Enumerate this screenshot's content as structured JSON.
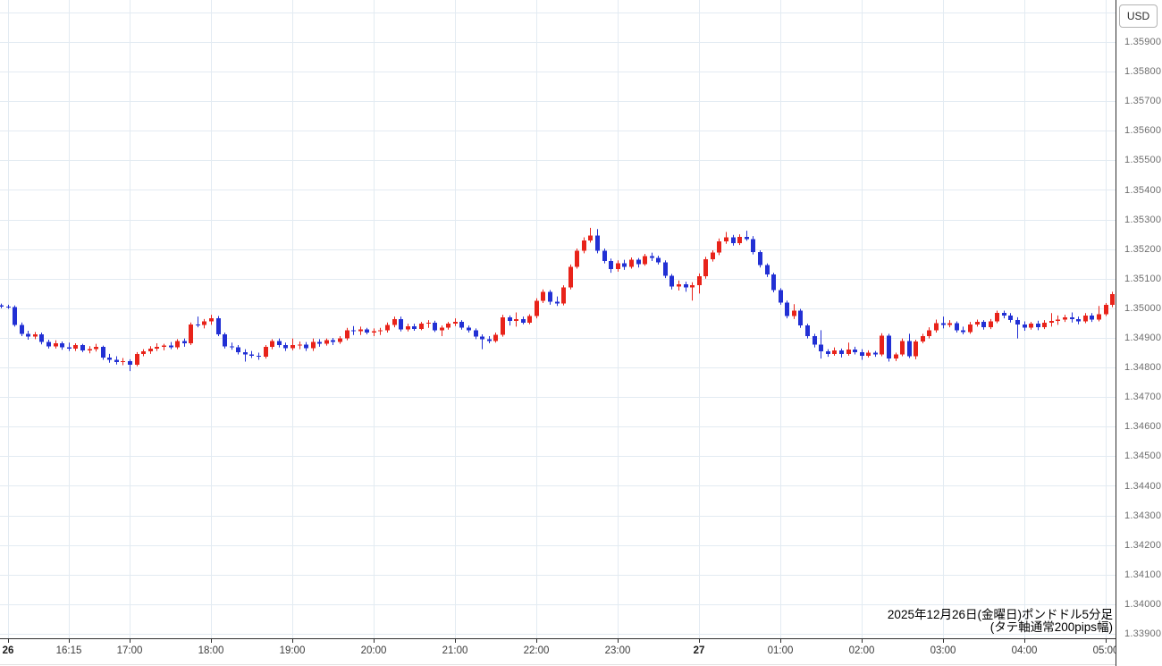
{
  "axis_panel": {
    "currency_label": "USD"
  },
  "caption": {
    "line1": "2025年12月26日(金曜日)ポンドドル5分足",
    "line2": "(タテ軸通常200pips幅)"
  },
  "chart_data": {
    "type": "candlestick",
    "instrument": "ポンドドル",
    "timeframe": "5分足",
    "date": "2025年12月26日(金曜日)",
    "up_color": "#e8231a",
    "down_color": "#2230d4",
    "grid_color": "#e3ebf2",
    "y_axis": {
      "min": 1.339,
      "max": 1.36,
      "grid_step": 0.001,
      "tick_labels": [
        "1.35900",
        "1.35800",
        "1.35700",
        "1.35600",
        "1.35500",
        "1.35400",
        "1.35300",
        "1.35200",
        "1.35100",
        "1.35000",
        "1.34900",
        "1.34800",
        "1.34700",
        "1.34600",
        "1.34500",
        "1.34400",
        "1.34300",
        "1.34200",
        "1.34100",
        "1.34000",
        "1.33900"
      ]
    },
    "x_axis": {
      "labels": [
        {
          "text": "26",
          "min": 5,
          "bold": true
        },
        {
          "text": "16:15",
          "min": 50
        },
        {
          "text": "17:00",
          "min": 95
        },
        {
          "text": "18:00",
          "min": 155
        },
        {
          "text": "19:00",
          "min": 215
        },
        {
          "text": "20:00",
          "min": 275
        },
        {
          "text": "21:00",
          "min": 335
        },
        {
          "text": "22:00",
          "min": 395
        },
        {
          "text": "23:00",
          "min": 455
        },
        {
          "text": "27",
          "min": 515,
          "bold": true
        },
        {
          "text": "01:00",
          "min": 575
        },
        {
          "text": "02:00",
          "min": 635
        },
        {
          "text": "03:00",
          "min": 695
        },
        {
          "text": "04:00",
          "min": 755
        },
        {
          "text": "05:00",
          "min": 815
        }
      ]
    },
    "candle_fields": [
      "time",
      "open",
      "high",
      "low",
      "close"
    ],
    "candles": [
      [
        "15:25",
        1.3501,
        1.35016,
        1.35,
        1.35006
      ],
      [
        "15:30",
        1.35006,
        1.35012,
        1.34998,
        1.35004
      ],
      [
        "15:35",
        1.35004,
        1.3501,
        1.34938,
        1.34944
      ],
      [
        "15:40",
        1.34944,
        1.34952,
        1.34906,
        1.34914
      ],
      [
        "15:45",
        1.34914,
        1.34924,
        1.34894,
        1.34904
      ],
      [
        "15:50",
        1.34904,
        1.3492,
        1.34896,
        1.34912
      ],
      [
        "15:55",
        1.34912,
        1.34918,
        1.34878,
        1.34886
      ],
      [
        "16:00",
        1.34886,
        1.34894,
        1.34864,
        1.34872
      ],
      [
        "16:05",
        1.34872,
        1.34892,
        1.34864,
        1.34882
      ],
      [
        "16:10",
        1.34882,
        1.34888,
        1.3486,
        1.34868
      ],
      [
        "16:15",
        1.34868,
        1.34884,
        1.34856,
        1.34864
      ],
      [
        "16:20",
        1.34864,
        1.34882,
        1.34856,
        1.34876
      ],
      [
        "16:25",
        1.34876,
        1.3488,
        1.34852,
        1.34858
      ],
      [
        "16:30",
        1.34858,
        1.34872,
        1.34848,
        1.34862
      ],
      [
        "16:35",
        1.34862,
        1.3488,
        1.34854,
        1.3487
      ],
      [
        "16:40",
        1.3487,
        1.34874,
        1.34826,
        1.34834
      ],
      [
        "16:45",
        1.34834,
        1.34846,
        1.34816,
        1.34826
      ],
      [
        "16:50",
        1.34826,
        1.34838,
        1.3481,
        1.34818
      ],
      [
        "16:55",
        1.34818,
        1.34832,
        1.34808,
        1.34822
      ],
      [
        "17:00",
        1.34822,
        1.34828,
        1.34788,
        1.3481
      ],
      [
        "17:05",
        1.3481,
        1.34852,
        1.34804,
        1.34846
      ],
      [
        "17:10",
        1.34846,
        1.34862,
        1.34838,
        1.34854
      ],
      [
        "17:15",
        1.34854,
        1.34872,
        1.34846,
        1.34864
      ],
      [
        "17:20",
        1.34864,
        1.34882,
        1.34856,
        1.3487
      ],
      [
        "17:25",
        1.3487,
        1.3488,
        1.34858,
        1.34874
      ],
      [
        "17:30",
        1.34874,
        1.34886,
        1.34862,
        1.34868
      ],
      [
        "17:35",
        1.34868,
        1.34896,
        1.34862,
        1.3489
      ],
      [
        "17:40",
        1.3489,
        1.34898,
        1.3487,
        1.34882
      ],
      [
        "17:45",
        1.34882,
        1.34952,
        1.34876,
        1.34946
      ],
      [
        "17:50",
        1.34946,
        1.34972,
        1.34936,
        1.34944
      ],
      [
        "17:55",
        1.34944,
        1.34964,
        1.34932,
        1.34956
      ],
      [
        "18:00",
        1.34956,
        1.34978,
        1.34944,
        1.34966
      ],
      [
        "18:05",
        1.34966,
        1.34974,
        1.34906,
        1.34912
      ],
      [
        "18:10",
        1.34912,
        1.34918,
        1.34864,
        1.34872
      ],
      [
        "18:15",
        1.34872,
        1.34884,
        1.3486,
        1.34868
      ],
      [
        "18:20",
        1.34868,
        1.34876,
        1.34844,
        1.34852
      ],
      [
        "18:25",
        1.34852,
        1.34862,
        1.3482,
        1.34844
      ],
      [
        "18:30",
        1.34844,
        1.34856,
        1.34832,
        1.3484
      ],
      [
        "18:35",
        1.3484,
        1.3485,
        1.34826,
        1.34836
      ],
      [
        "18:40",
        1.34836,
        1.34876,
        1.3483,
        1.3487
      ],
      [
        "18:45",
        1.3487,
        1.34896,
        1.34862,
        1.3489
      ],
      [
        "18:50",
        1.3489,
        1.34898,
        1.34868,
        1.34876
      ],
      [
        "18:55",
        1.34876,
        1.34884,
        1.34856,
        1.34866
      ],
      [
        "19:00",
        1.34866,
        1.34898,
        1.34858,
        1.34876
      ],
      [
        "19:05",
        1.34876,
        1.34888,
        1.34862,
        1.34878
      ],
      [
        "19:10",
        1.34878,
        1.34886,
        1.34856,
        1.34866
      ],
      [
        "19:15",
        1.34866,
        1.34898,
        1.34856,
        1.34886
      ],
      [
        "19:20",
        1.34886,
        1.34896,
        1.3487,
        1.3488
      ],
      [
        "19:25",
        1.3488,
        1.34898,
        1.34874,
        1.34892
      ],
      [
        "19:30",
        1.34892,
        1.349,
        1.34876,
        1.34886
      ],
      [
        "19:35",
        1.34886,
        1.34906,
        1.3488,
        1.34898
      ],
      [
        "19:40",
        1.34898,
        1.34934,
        1.34892,
        1.34926
      ],
      [
        "19:45",
        1.34926,
        1.3494,
        1.3491,
        1.34922
      ],
      [
        "19:50",
        1.34922,
        1.34938,
        1.3491,
        1.34928
      ],
      [
        "19:55",
        1.34928,
        1.34934,
        1.34912,
        1.34918
      ],
      [
        "20:00",
        1.34918,
        1.34932,
        1.34906,
        1.34922
      ],
      [
        "20:05",
        1.34922,
        1.34934,
        1.3491,
        1.34926
      ],
      [
        "20:10",
        1.34926,
        1.34952,
        1.34918,
        1.34944
      ],
      [
        "20:15",
        1.34944,
        1.34972,
        1.34936,
        1.34964
      ],
      [
        "20:20",
        1.34964,
        1.34972,
        1.34922,
        1.34928
      ],
      [
        "20:25",
        1.34928,
        1.34948,
        1.34922,
        1.3494
      ],
      [
        "20:30",
        1.3494,
        1.34948,
        1.34924,
        1.3493
      ],
      [
        "20:35",
        1.3493,
        1.34954,
        1.34926,
        1.34948
      ],
      [
        "20:40",
        1.34948,
        1.3496,
        1.34934,
        1.34952
      ],
      [
        "20:45",
        1.34952,
        1.34958,
        1.3492,
        1.34926
      ],
      [
        "20:50",
        1.34926,
        1.34942,
        1.34906,
        1.34934
      ],
      [
        "20:55",
        1.34934,
        1.34954,
        1.34928,
        1.34948
      ],
      [
        "21:00",
        1.34948,
        1.34966,
        1.3494,
        1.34954
      ],
      [
        "21:05",
        1.34954,
        1.3496,
        1.34928,
        1.34934
      ],
      [
        "21:10",
        1.34934,
        1.34942,
        1.34918,
        1.34926
      ],
      [
        "21:15",
        1.34926,
        1.34932,
        1.34896,
        1.34904
      ],
      [
        "21:20",
        1.34904,
        1.34912,
        1.34862,
        1.34896
      ],
      [
        "21:25",
        1.34896,
        1.34906,
        1.34882,
        1.3489
      ],
      [
        "21:30",
        1.3489,
        1.34918,
        1.34884,
        1.3491
      ],
      [
        "21:35",
        1.3491,
        1.34978,
        1.34904,
        1.3497
      ],
      [
        "21:40",
        1.3497,
        1.34976,
        1.34942,
        1.34958
      ],
      [
        "21:45",
        1.34958,
        1.34986,
        1.34938,
        1.34964
      ],
      [
        "21:50",
        1.34964,
        1.34972,
        1.34946,
        1.34952
      ],
      [
        "21:55",
        1.34952,
        1.3498,
        1.34946,
        1.34974
      ],
      [
        "22:00",
        1.34974,
        1.35034,
        1.34966,
        1.35026
      ],
      [
        "22:05",
        1.35026,
        1.35064,
        1.35018,
        1.35056
      ],
      [
        "22:10",
        1.35056,
        1.35062,
        1.35012,
        1.35022
      ],
      [
        "22:15",
        1.35022,
        1.3504,
        1.35008,
        1.35016
      ],
      [
        "22:20",
        1.35016,
        1.35078,
        1.3501,
        1.3507
      ],
      [
        "22:25",
        1.3507,
        1.35148,
        1.35064,
        1.3514
      ],
      [
        "22:30",
        1.3514,
        1.35202,
        1.35134,
        1.35194
      ],
      [
        "22:35",
        1.35194,
        1.3524,
        1.35186,
        1.3523
      ],
      [
        "22:40",
        1.3523,
        1.35272,
        1.35222,
        1.35246
      ],
      [
        "22:45",
        1.35246,
        1.35268,
        1.35186,
        1.35194
      ],
      [
        "22:50",
        1.35194,
        1.35202,
        1.35152,
        1.3516
      ],
      [
        "22:55",
        1.3516,
        1.35168,
        1.3512,
        1.35132
      ],
      [
        "23:00",
        1.35132,
        1.35162,
        1.35124,
        1.35152
      ],
      [
        "23:05",
        1.35152,
        1.35164,
        1.3513,
        1.3514
      ],
      [
        "23:10",
        1.3514,
        1.35172,
        1.35134,
        1.35164
      ],
      [
        "23:15",
        1.35164,
        1.3517,
        1.35138,
        1.3515
      ],
      [
        "23:20",
        1.3515,
        1.35184,
        1.35144,
        1.35176
      ],
      [
        "23:25",
        1.35176,
        1.35188,
        1.3516,
        1.3517
      ],
      [
        "23:30",
        1.3517,
        1.35178,
        1.35148,
        1.35156
      ],
      [
        "23:35",
        1.35156,
        1.35162,
        1.35102,
        1.3511
      ],
      [
        "23:40",
        1.3511,
        1.35116,
        1.35064,
        1.35074
      ],
      [
        "23:45",
        1.35074,
        1.35094,
        1.3506,
        1.35082
      ],
      [
        "23:50",
        1.35082,
        1.3509,
        1.35056,
        1.3507
      ],
      [
        "23:55",
        1.3507,
        1.35088,
        1.35026,
        1.35078
      ],
      [
        "00:00",
        1.35078,
        1.35118,
        1.3505,
        1.35108
      ],
      [
        "00:05",
        1.35108,
        1.35174,
        1.351,
        1.35166
      ],
      [
        "00:10",
        1.35166,
        1.35196,
        1.35158,
        1.35188
      ],
      [
        "00:15",
        1.35188,
        1.35236,
        1.3518,
        1.35226
      ],
      [
        "00:20",
        1.35226,
        1.35258,
        1.35218,
        1.3524
      ],
      [
        "00:25",
        1.3524,
        1.35248,
        1.35212,
        1.3522
      ],
      [
        "00:30",
        1.3522,
        1.3525,
        1.35214,
        1.35242
      ],
      [
        "00:35",
        1.35242,
        1.35262,
        1.35228,
        1.35234
      ],
      [
        "00:40",
        1.35234,
        1.35244,
        1.35182,
        1.3519
      ],
      [
        "00:45",
        1.3519,
        1.35196,
        1.35138,
        1.35146
      ],
      [
        "00:50",
        1.35146,
        1.35152,
        1.35106,
        1.35114
      ],
      [
        "00:55",
        1.35114,
        1.3512,
        1.35054,
        1.35062
      ],
      [
        "01:00",
        1.35062,
        1.35068,
        1.35012,
        1.3502
      ],
      [
        "01:05",
        1.3502,
        1.35026,
        1.34966,
        1.34974
      ],
      [
        "01:10",
        1.34974,
        1.35014,
        1.34964,
        1.34992
      ],
      [
        "01:15",
        1.34992,
        1.34998,
        1.34934,
        1.34942
      ],
      [
        "01:20",
        1.34942,
        1.34948,
        1.34898,
        1.34906
      ],
      [
        "01:25",
        1.34906,
        1.34914,
        1.34868,
        1.34878
      ],
      [
        "01:30",
        1.34878,
        1.34926,
        1.3483,
        1.34854
      ],
      [
        "01:35",
        1.34854,
        1.34862,
        1.34836,
        1.34846
      ],
      [
        "01:40",
        1.34846,
        1.34868,
        1.3484,
        1.34858
      ],
      [
        "01:45",
        1.34858,
        1.34864,
        1.34834,
        1.34846
      ],
      [
        "01:50",
        1.34846,
        1.34884,
        1.3484,
        1.3486
      ],
      [
        "01:55",
        1.3486,
        1.3487,
        1.34844,
        1.34852
      ],
      [
        "02:00",
        1.34852,
        1.34862,
        1.34826,
        1.3484
      ],
      [
        "02:05",
        1.3484,
        1.34858,
        1.34834,
        1.3485
      ],
      [
        "02:10",
        1.3485,
        1.34856,
        1.34836,
        1.34844
      ],
      [
        "02:15",
        1.34844,
        1.34916,
        1.34838,
        1.34908
      ],
      [
        "02:20",
        1.34908,
        1.34914,
        1.3482,
        1.3483
      ],
      [
        "02:25",
        1.3483,
        1.3485,
        1.34822,
        1.34844
      ],
      [
        "02:30",
        1.34844,
        1.34898,
        1.34838,
        1.3489
      ],
      [
        "02:35",
        1.3489,
        1.34914,
        1.34832,
        1.34838
      ],
      [
        "02:40",
        1.34838,
        1.34894,
        1.34828,
        1.34888
      ],
      [
        "02:45",
        1.34888,
        1.34914,
        1.34882,
        1.34906
      ],
      [
        "02:50",
        1.34906,
        1.34936,
        1.34898,
        1.34926
      ],
      [
        "02:55",
        1.34926,
        1.34962,
        1.34918,
        1.3495
      ],
      [
        "03:00",
        1.3495,
        1.34972,
        1.34932,
        1.34944
      ],
      [
        "03:05",
        1.34944,
        1.3496,
        1.34936,
        1.3495
      ],
      [
        "03:10",
        1.3495,
        1.34956,
        1.34918,
        1.34926
      ],
      [
        "03:15",
        1.34926,
        1.34938,
        1.34912,
        1.3492
      ],
      [
        "03:20",
        1.3492,
        1.34954,
        1.34914,
        1.34946
      ],
      [
        "03:25",
        1.34946,
        1.34962,
        1.34938,
        1.34954
      ],
      [
        "03:30",
        1.34954,
        1.3496,
        1.34928,
        1.34936
      ],
      [
        "03:35",
        1.34936,
        1.34964,
        1.3493,
        1.34956
      ],
      [
        "03:40",
        1.34956,
        1.34992,
        1.3495,
        1.34984
      ],
      [
        "03:45",
        1.34984,
        1.34992,
        1.34966,
        1.34976
      ],
      [
        "03:50",
        1.34976,
        1.34984,
        1.34952,
        1.3496
      ],
      [
        "03:55",
        1.3496,
        1.3497,
        1.34898,
        1.34946
      ],
      [
        "04:00",
        1.34946,
        1.34956,
        1.34924,
        1.34934
      ],
      [
        "04:05",
        1.34934,
        1.34954,
        1.34928,
        1.34948
      ],
      [
        "04:10",
        1.34948,
        1.34958,
        1.34926,
        1.34936
      ],
      [
        "04:15",
        1.34936,
        1.3496,
        1.3493,
        1.34952
      ],
      [
        "04:20",
        1.34952,
        1.34984,
        1.34938,
        1.34958
      ],
      [
        "04:25",
        1.34958,
        1.34976,
        1.34944,
        1.34962
      ],
      [
        "04:30",
        1.34962,
        1.34978,
        1.34954,
        1.3497
      ],
      [
        "04:35",
        1.3497,
        1.34986,
        1.34952,
        1.34964
      ],
      [
        "04:40",
        1.34964,
        1.34972,
        1.34946,
        1.34956
      ],
      [
        "04:45",
        1.34956,
        1.34984,
        1.3495,
        1.34976
      ],
      [
        "04:50",
        1.34976,
        1.34984,
        1.34954,
        1.34962
      ],
      [
        "04:55",
        1.34962,
        1.35008,
        1.34956,
        1.3498
      ],
      [
        "05:00",
        1.3498,
        1.35018,
        1.34974,
        1.35012
      ],
      [
        "05:05",
        1.35012,
        1.35056,
        1.35004,
        1.35048
      ]
    ]
  }
}
